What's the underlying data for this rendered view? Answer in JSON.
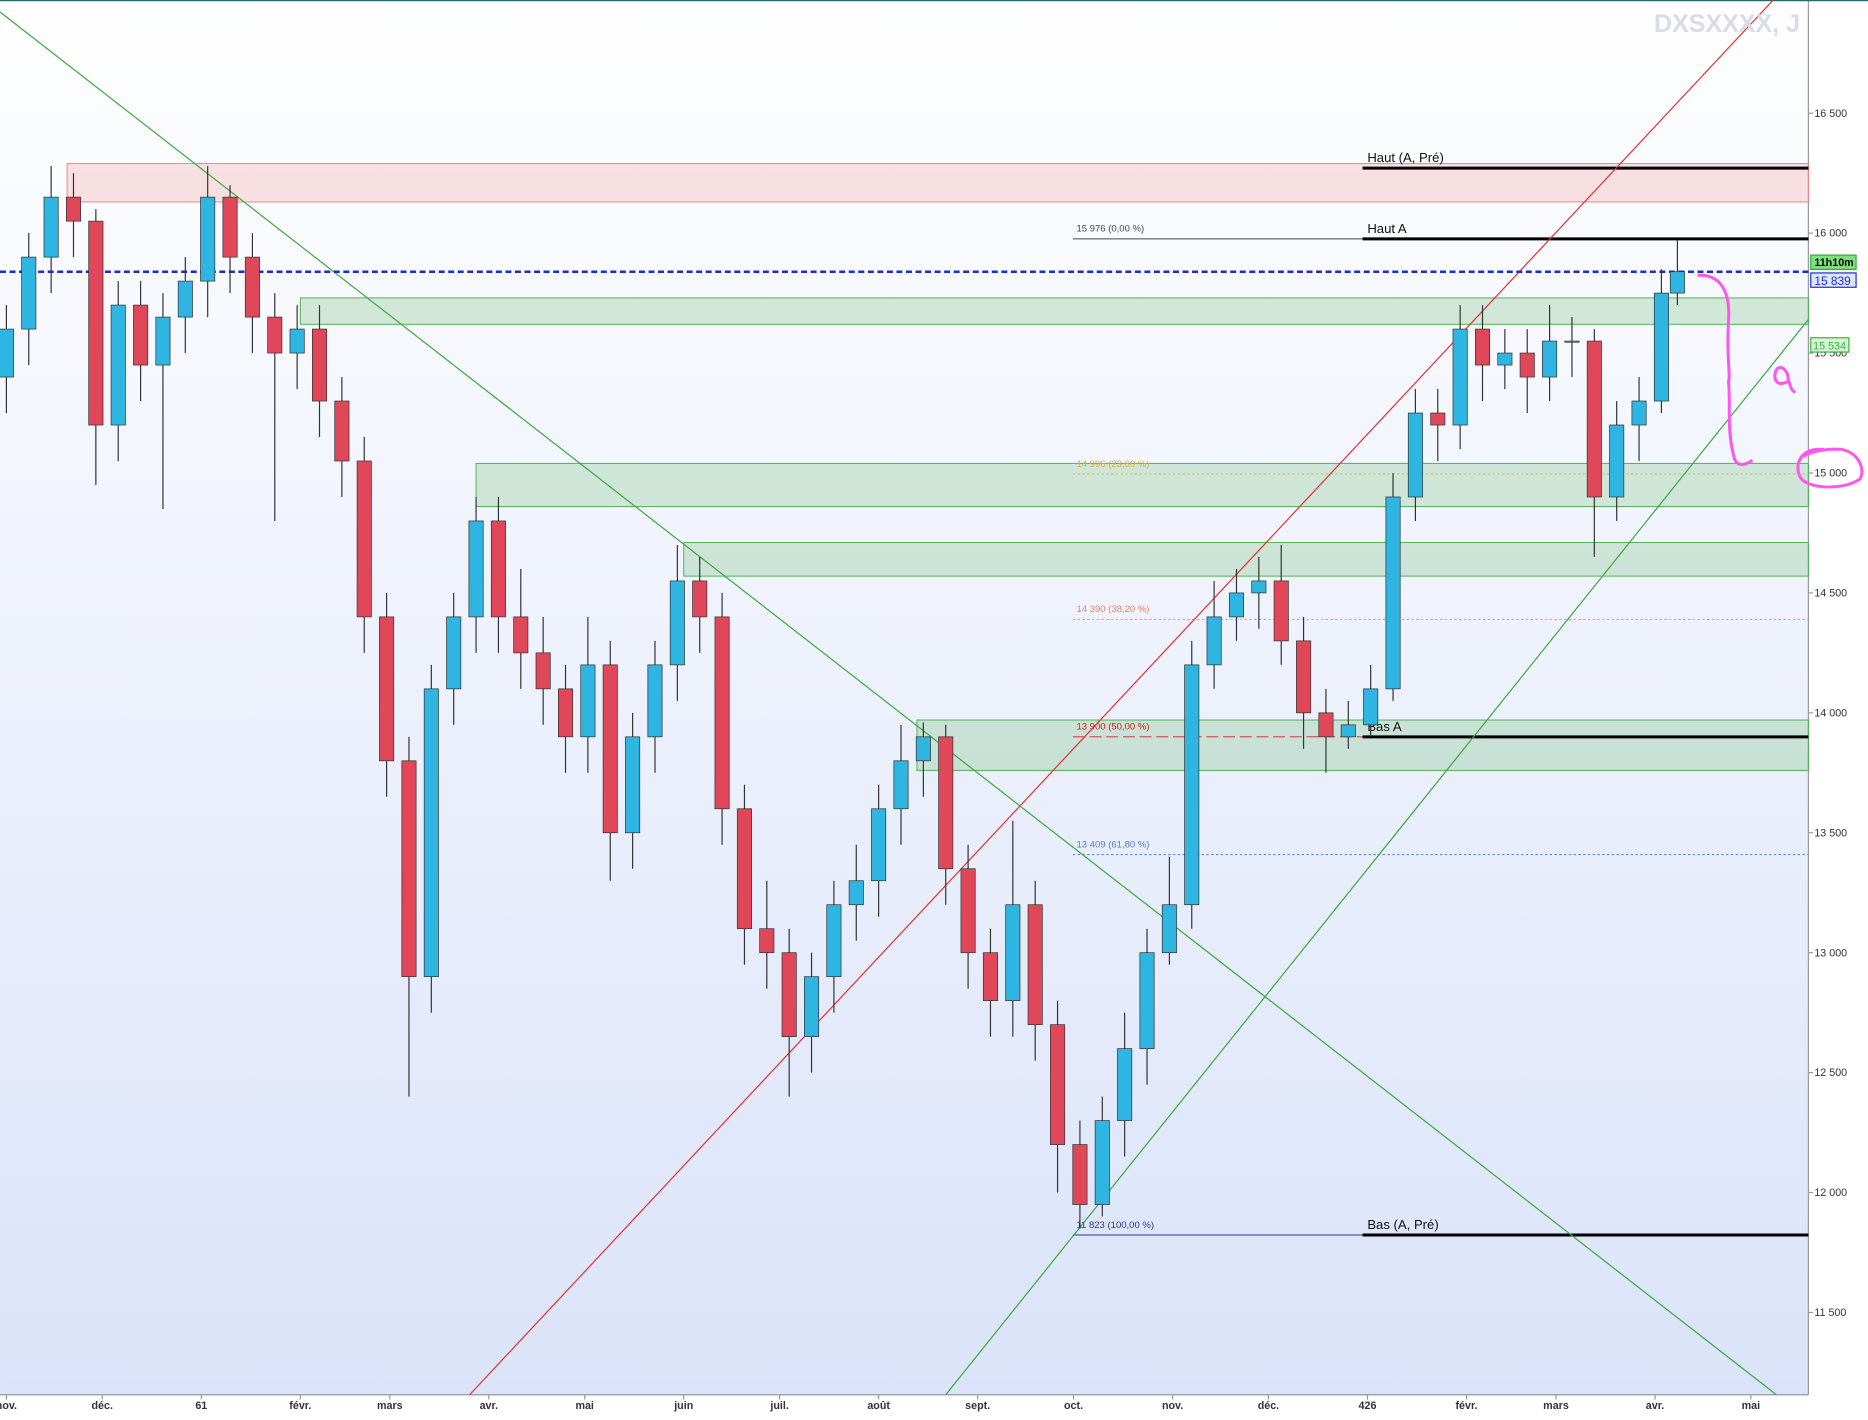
{
  "chart_data": {
    "type": "candlestick",
    "title": "DXSXXXX, J",
    "x": [
      0,
      7,
      14,
      21,
      28,
      35,
      42,
      49,
      56,
      63,
      70,
      77,
      84,
      91,
      98,
      105,
      112,
      119,
      126,
      133,
      140,
      147,
      154,
      161,
      168,
      175,
      182,
      189,
      196,
      203,
      210,
      217,
      224,
      231,
      238,
      245,
      252,
      259,
      266,
      273,
      280,
      287,
      294,
      301,
      308,
      315,
      322,
      329,
      336,
      343,
      350,
      357,
      364,
      371,
      378,
      385,
      392,
      399,
      406,
      413,
      420,
      427,
      434,
      441,
      448,
      455,
      462,
      469,
      476,
      483,
      490,
      497,
      504,
      511,
      518,
      523
    ],
    "open": [
      15400,
      15600,
      15900,
      16150,
      16050,
      15200,
      15700,
      15450,
      15650,
      15800,
      16150,
      15900,
      15650,
      15500,
      15600,
      15300,
      15050,
      14400,
      13800,
      12900,
      14100,
      14400,
      14800,
      14400,
      14250,
      14100,
      13900,
      14200,
      13500,
      13900,
      14200,
      14550,
      14400,
      13600,
      13100,
      13000,
      12650,
      12900,
      13200,
      13300,
      13600,
      13800,
      13900,
      13350,
      13000,
      12800,
      13200,
      12700,
      12200,
      11950,
      12300,
      12600,
      13000,
      13200,
      14200,
      14400,
      14500,
      14550,
      14300,
      14000,
      13900,
      13950,
      14100,
      14900,
      15250,
      15200,
      15600,
      15450,
      15500,
      15400,
      15550,
      15550,
      14900,
      15200,
      15300,
      15750
    ],
    "high": [
      15700,
      16000,
      16280,
      16250,
      16100,
      15800,
      15800,
      15750,
      15900,
      16280,
      16200,
      16000,
      15750,
      15700,
      15700,
      15400,
      15150,
      14500,
      13900,
      14200,
      14500,
      14900,
      14900,
      14600,
      14400,
      14200,
      14400,
      14300,
      14000,
      14300,
      14700,
      14650,
      14500,
      13700,
      13300,
      13100,
      13000,
      13300,
      13450,
      13700,
      13950,
      13960,
      13950,
      13450,
      13100,
      13550,
      13300,
      12800,
      12300,
      12400,
      12750,
      13100,
      13400,
      14300,
      14550,
      14600,
      14650,
      14700,
      14400,
      14100,
      14050,
      14200,
      15000,
      15350,
      15350,
      15700,
      15700,
      15600,
      15600,
      15700,
      15650,
      15600,
      15300,
      15400,
      15850,
      15970
    ],
    "low": [
      15250,
      15450,
      15750,
      15900,
      14950,
      15050,
      15300,
      14850,
      15500,
      15650,
      15750,
      15500,
      14800,
      15350,
      15150,
      14900,
      14250,
      13650,
      12400,
      12750,
      13950,
      14250,
      14250,
      14100,
      13950,
      13750,
      13750,
      13300,
      13350,
      13750,
      14050,
      14250,
      13450,
      12950,
      12850,
      12400,
      12500,
      12750,
      13050,
      13150,
      13450,
      13650,
      13200,
      12850,
      12650,
      12650,
      12550,
      12000,
      11850,
      11900,
      12150,
      12450,
      12950,
      13100,
      14100,
      14300,
      14350,
      14200,
      13850,
      13750,
      13850,
      13900,
      14050,
      14800,
      15050,
      15100,
      15300,
      15350,
      15250,
      15300,
      15400,
      14650,
      14800,
      15050,
      15250,
      15700
    ],
    "close": [
      15600,
      15900,
      16150,
      16050,
      15200,
      15700,
      15450,
      15650,
      15800,
      16150,
      15900,
      15650,
      15500,
      15600,
      15300,
      15050,
      14400,
      13800,
      12900,
      14100,
      14400,
      14800,
      14400,
      14250,
      14100,
      13900,
      14200,
      13500,
      13900,
      14200,
      14550,
      14400,
      13600,
      13100,
      13000,
      12650,
      12900,
      13200,
      13300,
      13600,
      13800,
      13900,
      13350,
      13000,
      12800,
      13200,
      12700,
      12200,
      11950,
      12300,
      12600,
      13000,
      13200,
      14200,
      14400,
      14500,
      14550,
      14300,
      14000,
      13900,
      13950,
      14100,
      14900,
      15250,
      15200,
      15600,
      15450,
      15500,
      15400,
      15550,
      15550,
      14900,
      15200,
      15300,
      15750,
      15839
    ],
    "up_color": "#2fb5e2",
    "down_color": "#e0485a",
    "xlim": [
      -2,
      564
    ],
    "xticks": [
      {
        "value": 0,
        "label": "nov."
      },
      {
        "value": 30,
        "label": "déc."
      },
      61,
      {
        "value": 92,
        "label": "févr."
      },
      {
        "value": 120,
        "label": "mars"
      },
      {
        "value": 151,
        "label": "avr."
      },
      {
        "value": 181,
        "label": "mai"
      },
      {
        "value": 212,
        "label": "juin"
      },
      {
        "value": 242,
        "label": "juil."
      },
      {
        "value": 273,
        "label": "août"
      },
      {
        "value": 304,
        "label": "sept."
      },
      {
        "value": 334,
        "label": "oct."
      },
      {
        "value": 365,
        "label": "nov."
      },
      {
        "value": 395,
        "label": "déc."
      },
      426,
      {
        "value": 457,
        "label": "févr."
      },
      {
        "value": 485,
        "label": "mars"
      },
      {
        "value": 516,
        "label": "avr."
      },
      {
        "value": 546,
        "label": "mai"
      }
    ],
    "ylim": [
      11157,
      16972
    ],
    "yticks": [
      {
        "value": 11500,
        "label": "11 500"
      },
      {
        "value": 12000,
        "label": "12 000"
      },
      {
        "value": 12500,
        "label": "12 500"
      },
      {
        "value": 13000,
        "label": "13 000"
      },
      {
        "value": 13500,
        "label": "13 500"
      },
      {
        "value": 14000,
        "label": "14 000"
      },
      {
        "value": 14500,
        "label": "14 500"
      },
      {
        "value": 15000,
        "label": "15 000"
      },
      {
        "value": 15500,
        "label": "15 500"
      },
      {
        "value": 16000,
        "label": "16 000"
      },
      {
        "value": 16500,
        "label": "16 500"
      }
    ],
    "zones": [
      {
        "from": 19,
        "ymin": 16130,
        "ymax": 16290,
        "color": "#f08080"
      },
      {
        "from": 92,
        "ymin": 15620,
        "ymax": 15730,
        "color": "#4caf50"
      },
      {
        "from": 147,
        "ymin": 14860,
        "ymax": 15040,
        "color": "#4caf50"
      },
      {
        "from": 212,
        "ymin": 14570,
        "ymax": 14710,
        "color": "#4caf50"
      },
      {
        "from": 285,
        "ymin": 13760,
        "ymax": 13970,
        "color": "#4caf50"
      }
    ],
    "trendlines": [
      {
        "x": [
          145,
          553
        ],
        "y": [
          11157,
          16972
        ],
        "color": "#e03030"
      },
      {
        "x": [
          -2,
          554
        ],
        "y": [
          16922,
          11157
        ],
        "color": "#3aa83a"
      },
      {
        "x": [
          294,
          564
        ],
        "y": [
          11157,
          15640
        ],
        "color": "#3aa83a"
      }
    ],
    "fib_levels": [
      {
        "value": 15976,
        "label": "15 976 (0,00 %)",
        "color": "#444444"
      },
      {
        "value": 14996,
        "label": "14 996 (23,60 %)",
        "color": "#e0b030"
      },
      {
        "value": 14390,
        "label": "14 390 (38,20 %)",
        "color": "#f08060"
      },
      {
        "value": 13900,
        "label": "13 900 (50,00 %)",
        "color": "#d02020"
      },
      {
        "value": 13409,
        "label": "13 409 (61,80 %)",
        "color": "#5080c0"
      },
      {
        "value": 11823,
        "label": "11 823 (100,00 %)",
        "color": "#303090"
      }
    ],
    "levels": [
      {
        "value": 16271,
        "label": "Haut (A, Pré)"
      },
      {
        "value": 15976,
        "label": "Haut A"
      },
      {
        "value": 13900,
        "label": "Bas A"
      },
      {
        "value": 11823,
        "label": "Bas (A, Pré)"
      }
    ],
    "price_line": {
      "value": 15839,
      "label": "15 839",
      "color": "#1a2ccc"
    },
    "timer": "11h10m",
    "badge": {
      "value": 15534,
      "label": "15 534",
      "color": "#3ab03a"
    }
  }
}
